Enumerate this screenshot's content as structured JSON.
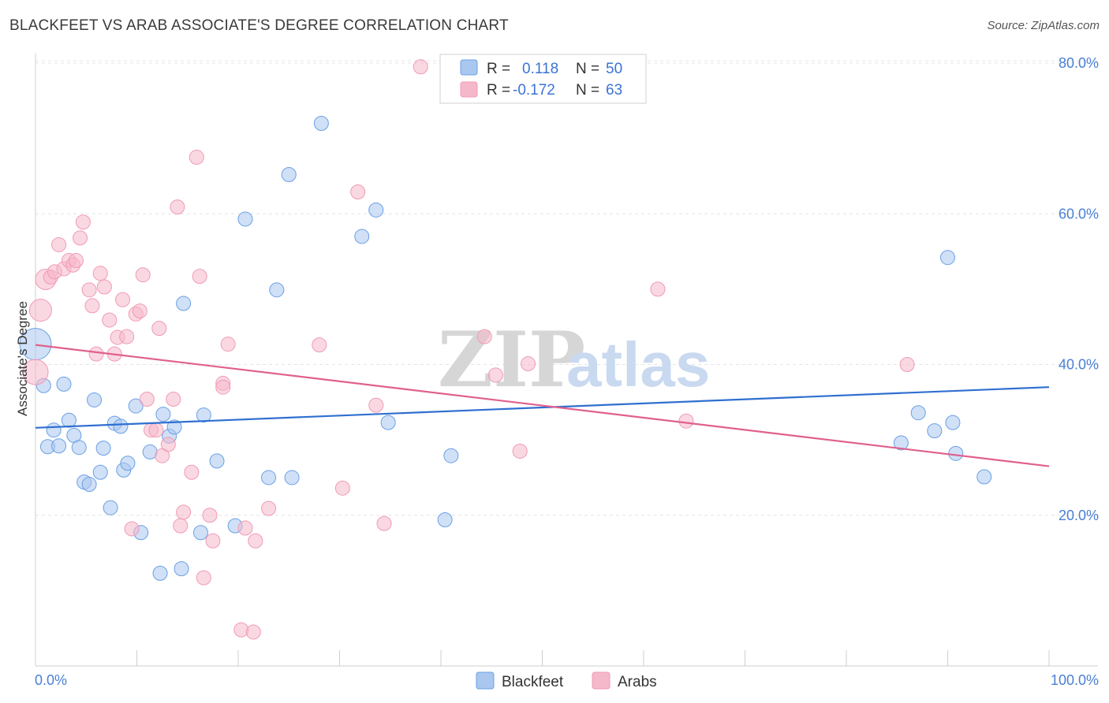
{
  "header": {
    "title": "BLACKFEET VS ARAB ASSOCIATE'S DEGREE CORRELATION CHART",
    "source": "Source: ZipAtlas.com"
  },
  "watermark": {
    "zip": "ZIP",
    "atlas": "atlas"
  },
  "legend": {
    "rows": [
      {
        "r_label": "R =",
        "r_value": "0.118",
        "n_label": "N =",
        "n_value": "50",
        "color": "#a9c7ef"
      },
      {
        "r_label": "R =",
        "r_value": "-0.172",
        "n_label": "N =",
        "n_value": "63",
        "color": "#f5b8cb"
      }
    ]
  },
  "bottom_legend": [
    {
      "label": "Blackfeet",
      "color": "#a9c7ef"
    },
    {
      "label": "Arabs",
      "color": "#f5b8cb"
    }
  ],
  "chart_data": {
    "type": "scatter",
    "title": "BLACKFEET VS ARAB ASSOCIATE'S DEGREE CORRELATION CHART",
    "xlabel": "",
    "ylabel": "Associate's Degree",
    "xlim": [
      0,
      100
    ],
    "ylim": [
      0,
      80
    ],
    "x_tick_labels": [
      "0.0%",
      "100.0%"
    ],
    "y_ticks": [
      20,
      40,
      60,
      80
    ],
    "y_tick_labels": [
      "20.0%",
      "40.0%",
      "60.0%",
      "80.0%"
    ],
    "grid": true,
    "series": [
      {
        "name": "Blackfeet",
        "color": "#6aa0e6",
        "fill": "#a9c7ef",
        "trend": {
          "x": [
            0,
            100
          ],
          "y": [
            31.6,
            37.0
          ],
          "color": "#2f6fd0"
        },
        "points": [
          {
            "x": 0.0,
            "y": 42.7,
            "r": 20
          },
          {
            "x": 0.8,
            "y": 37.2
          },
          {
            "x": 1.2,
            "y": 29.1
          },
          {
            "x": 1.8,
            "y": 31.3
          },
          {
            "x": 2.3,
            "y": 29.2
          },
          {
            "x": 2.8,
            "y": 37.4
          },
          {
            "x": 3.3,
            "y": 32.6
          },
          {
            "x": 3.8,
            "y": 30.6
          },
          {
            "x": 4.3,
            "y": 29.0
          },
          {
            "x": 4.8,
            "y": 24.4
          },
          {
            "x": 5.3,
            "y": 24.1
          },
          {
            "x": 5.8,
            "y": 35.3
          },
          {
            "x": 6.4,
            "y": 25.7
          },
          {
            "x": 6.7,
            "y": 28.9
          },
          {
            "x": 7.4,
            "y": 21.0
          },
          {
            "x": 7.8,
            "y": 32.2
          },
          {
            "x": 8.4,
            "y": 31.8
          },
          {
            "x": 8.7,
            "y": 26.0
          },
          {
            "x": 9.1,
            "y": 26.9
          },
          {
            "x": 9.9,
            "y": 34.5
          },
          {
            "x": 10.4,
            "y": 17.7
          },
          {
            "x": 11.3,
            "y": 28.4
          },
          {
            "x": 12.3,
            "y": 12.3
          },
          {
            "x": 12.6,
            "y": 33.4
          },
          {
            "x": 13.2,
            "y": 30.5
          },
          {
            "x": 13.7,
            "y": 31.7
          },
          {
            "x": 14.4,
            "y": 12.9
          },
          {
            "x": 14.6,
            "y": 48.1
          },
          {
            "x": 16.3,
            "y": 17.7
          },
          {
            "x": 16.6,
            "y": 33.3
          },
          {
            "x": 17.9,
            "y": 27.2
          },
          {
            "x": 19.7,
            "y": 18.6
          },
          {
            "x": 20.7,
            "y": 59.3
          },
          {
            "x": 23.0,
            "y": 25.0
          },
          {
            "x": 23.8,
            "y": 49.9
          },
          {
            "x": 25.0,
            "y": 65.2
          },
          {
            "x": 25.3,
            "y": 25.0
          },
          {
            "x": 28.2,
            "y": 72.0
          },
          {
            "x": 32.2,
            "y": 57.0
          },
          {
            "x": 33.6,
            "y": 60.5
          },
          {
            "x": 34.8,
            "y": 32.3
          },
          {
            "x": 40.4,
            "y": 19.4
          },
          {
            "x": 41.0,
            "y": 27.9
          },
          {
            "x": 85.4,
            "y": 29.6
          },
          {
            "x": 87.1,
            "y": 33.6
          },
          {
            "x": 88.7,
            "y": 31.2
          },
          {
            "x": 90.5,
            "y": 32.3
          },
          {
            "x": 90.0,
            "y": 54.2
          },
          {
            "x": 90.8,
            "y": 28.2
          },
          {
            "x": 93.6,
            "y": 25.1
          }
        ]
      },
      {
        "name": "Arabs",
        "color": "#f09ab6",
        "fill": "#f5b8cb",
        "trend": {
          "x": [
            0,
            100
          ],
          "y": [
            42.6,
            26.5
          ],
          "color": "#e0608d"
        },
        "points": [
          {
            "x": 0.0,
            "y": 39.0,
            "r": 16
          },
          {
            "x": 0.5,
            "y": 47.2,
            "r": 14
          },
          {
            "x": 1.0,
            "y": 51.3,
            "r": 13
          },
          {
            "x": 1.5,
            "y": 51.6
          },
          {
            "x": 1.9,
            "y": 52.3
          },
          {
            "x": 2.3,
            "y": 55.9
          },
          {
            "x": 2.8,
            "y": 52.7
          },
          {
            "x": 3.3,
            "y": 53.8
          },
          {
            "x": 3.7,
            "y": 53.2
          },
          {
            "x": 4.0,
            "y": 53.8
          },
          {
            "x": 4.4,
            "y": 56.8
          },
          {
            "x": 4.7,
            "y": 58.9
          },
          {
            "x": 5.3,
            "y": 49.9
          },
          {
            "x": 5.6,
            "y": 47.8
          },
          {
            "x": 6.0,
            "y": 41.4
          },
          {
            "x": 6.4,
            "y": 52.1
          },
          {
            "x": 6.8,
            "y": 50.3
          },
          {
            "x": 7.3,
            "y": 45.9
          },
          {
            "x": 7.8,
            "y": 41.4
          },
          {
            "x": 8.1,
            "y": 43.6
          },
          {
            "x": 8.6,
            "y": 48.6
          },
          {
            "x": 9.0,
            "y": 43.7
          },
          {
            "x": 9.5,
            "y": 18.2
          },
          {
            "x": 9.9,
            "y": 46.7
          },
          {
            "x": 10.3,
            "y": 47.1
          },
          {
            "x": 10.6,
            "y": 51.9
          },
          {
            "x": 11.0,
            "y": 35.4
          },
          {
            "x": 11.4,
            "y": 31.3
          },
          {
            "x": 11.9,
            "y": 31.3
          },
          {
            "x": 12.2,
            "y": 44.8
          },
          {
            "x": 12.5,
            "y": 27.9
          },
          {
            "x": 13.1,
            "y": 29.4
          },
          {
            "x": 13.6,
            "y": 35.4
          },
          {
            "x": 14.0,
            "y": 60.9
          },
          {
            "x": 14.3,
            "y": 18.6
          },
          {
            "x": 14.6,
            "y": 20.4
          },
          {
            "x": 15.4,
            "y": 25.7
          },
          {
            "x": 15.9,
            "y": 67.5
          },
          {
            "x": 16.2,
            "y": 51.7
          },
          {
            "x": 16.6,
            "y": 11.7
          },
          {
            "x": 17.2,
            "y": 20.0
          },
          {
            "x": 17.5,
            "y": 16.6
          },
          {
            "x": 18.5,
            "y": 37.5
          },
          {
            "x": 18.5,
            "y": 37.0
          },
          {
            "x": 19.0,
            "y": 42.7
          },
          {
            "x": 20.3,
            "y": 4.8
          },
          {
            "x": 20.7,
            "y": 18.3
          },
          {
            "x": 21.5,
            "y": 4.5
          },
          {
            "x": 21.7,
            "y": 16.6
          },
          {
            "x": 23.0,
            "y": 20.9
          },
          {
            "x": 28.0,
            "y": 42.6
          },
          {
            "x": 30.3,
            "y": 23.6
          },
          {
            "x": 31.8,
            "y": 62.9
          },
          {
            "x": 33.6,
            "y": 34.6
          },
          {
            "x": 34.4,
            "y": 18.9
          },
          {
            "x": 38.0,
            "y": 79.5
          },
          {
            "x": 44.3,
            "y": 43.7
          },
          {
            "x": 45.4,
            "y": 38.6
          },
          {
            "x": 47.8,
            "y": 28.5
          },
          {
            "x": 48.6,
            "y": 40.1
          },
          {
            "x": 61.4,
            "y": 50.0
          },
          {
            "x": 64.2,
            "y": 32.5
          },
          {
            "x": 86.0,
            "y": 40.0
          }
        ]
      }
    ]
  }
}
